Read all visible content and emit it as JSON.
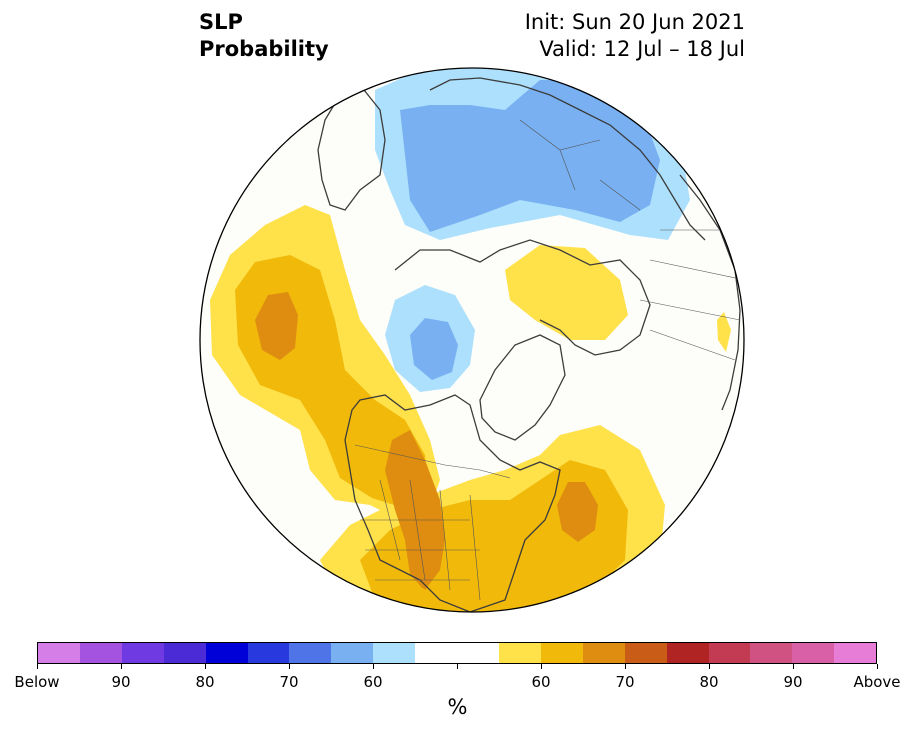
{
  "header": {
    "variable": "SLP",
    "product": "Probability",
    "init": "Init: Sun 20 Jun 2021",
    "valid": "Valid: 12 Jul – 18 Jul"
  },
  "map": {
    "projection": "north-polar-stereographic",
    "boundary": "circle",
    "features": [
      "coastlines",
      "country borders",
      "US state borders"
    ]
  },
  "legend": {
    "unit": "%",
    "colors": [
      "#d67ee8",
      "#a453e0",
      "#6f3ae1",
      "#4a2bd6",
      "#0000d8",
      "#2839dd",
      "#4f74e8",
      "#78b0f2",
      "#ade0fc",
      "#ffffff",
      "#ffffff",
      "#ffe14a",
      "#f1b90a",
      "#de8d10",
      "#c95d18",
      "#b02424",
      "#c23b52",
      "#d05282",
      "#d960a6",
      "#e87dd8"
    ],
    "tick_labels": [
      "Below",
      "90",
      "80",
      "70",
      "60",
      "",
      "60",
      "70",
      "80",
      "90",
      "Above"
    ]
  },
  "regions": [
    {
      "name": "north-pacific-high",
      "category": "above",
      "levels": [
        60,
        70
      ]
    },
    {
      "name": "north-america-high",
      "category": "above",
      "levels": [
        60,
        70
      ]
    },
    {
      "name": "atlantic-high",
      "category": "above",
      "levels": [
        60,
        70
      ]
    },
    {
      "name": "siberia-high",
      "category": "above",
      "levels": [
        60
      ]
    },
    {
      "name": "eurasia-low",
      "category": "below",
      "levels": [
        60,
        70
      ]
    },
    {
      "name": "beaufort-low",
      "category": "below",
      "levels": [
        60,
        70
      ]
    }
  ]
}
